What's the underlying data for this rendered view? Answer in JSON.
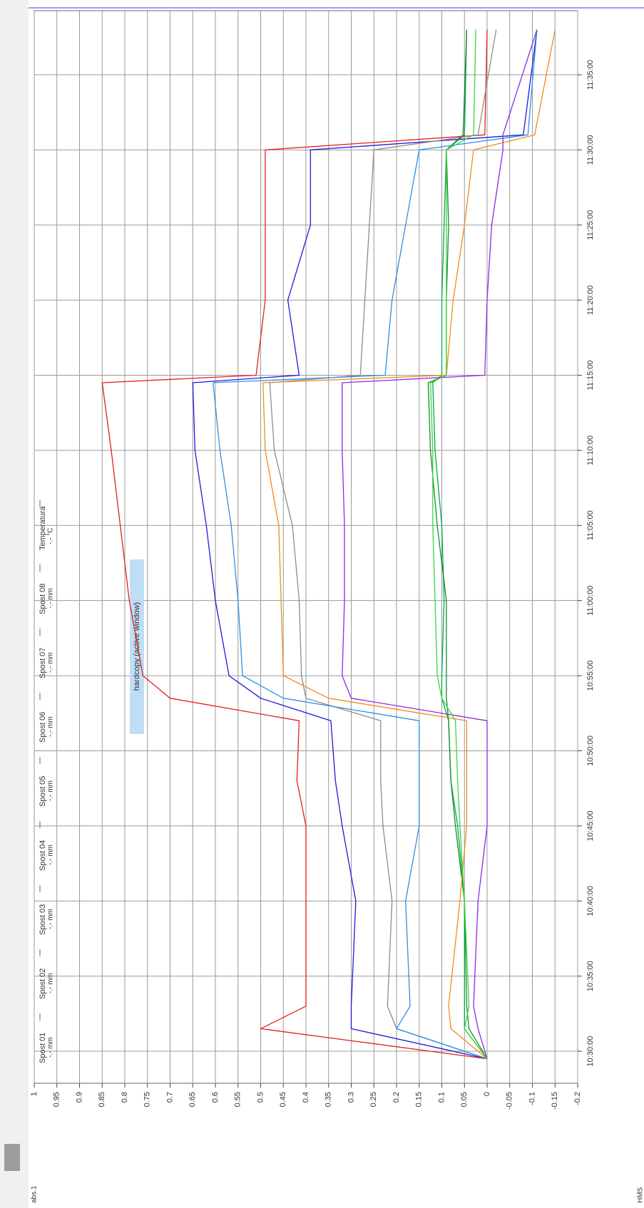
{
  "chart_data": {
    "type": "line",
    "annotation": "hardcopy (active window)",
    "x_axis_label": "HMS",
    "y_axis_label": "abs.1",
    "x": [
      "10:29:30",
      "10:31:30",
      "10:33:00",
      "10:40:00",
      "10:45:00",
      "10:48:00",
      "10:52:00",
      "10:53:30",
      "10:55:00",
      "11:00:00",
      "11:05:00",
      "11:10:00",
      "11:14:30",
      "11:15:00",
      "11:20:00",
      "11:25:00",
      "11:30:00",
      "11:31:00",
      "11:38:00"
    ],
    "xlim": [
      "10:27:52",
      "11:39:16"
    ],
    "xticks": [
      "10:30:00",
      "10:35:00",
      "10:40:00",
      "10:45:00",
      "10:50:00",
      "10:55:00",
      "11:00:00",
      "11:05:00",
      "11:10:00",
      "11:15:00",
      "11:20:00",
      "11:25:00",
      "11:30:00",
      "11:35:00"
    ],
    "ylim": [
      -0.2,
      1
    ],
    "yticks": [
      1,
      0.95,
      0.9,
      0.85,
      0.8,
      0.75,
      0.7,
      0.65,
      0.6,
      0.55,
      0.5,
      0.45,
      0.4,
      0.35,
      0.3,
      0.25,
      0.2,
      0.15,
      0.1,
      0.05,
      0,
      -0.05,
      -0.1,
      -0.15,
      -0.2
    ],
    "grid": true,
    "series": [
      {
        "name": "Spost 01",
        "unit_label": "-.- mm",
        "color": "#00a844",
        "values": [
          0,
          0.05,
          0.05,
          0.05,
          0.065,
          0.08,
          0.085,
          0.1,
          0.1,
          0.095,
          0.1,
          0.115,
          0.12,
          0.1,
          0.1,
          0.095,
          0.09,
          0.05,
          0.045
        ]
      },
      {
        "name": "Spost 02",
        "unit_label": "-.- mm",
        "color": "#1a1adc",
        "values": [
          0,
          0.3,
          0.3,
          0.29,
          0.32,
          0.335,
          0.345,
          0.5,
          0.57,
          0.6,
          0.62,
          0.645,
          0.65,
          0.415,
          0.44,
          0.39,
          0.39,
          -0.08,
          -0.11
        ]
      },
      {
        "name": "Spost 03",
        "unit_label": "-.- mm",
        "color": "#e81c1c",
        "values": [
          0,
          0.5,
          0.4,
          0.4,
          0.4,
          0.42,
          0.415,
          0.7,
          0.76,
          0.79,
          0.81,
          0.83,
          0.85,
          0.51,
          0.49,
          0.49,
          0.49,
          0.005,
          0
        ]
      },
      {
        "name": "Spost 04",
        "unit_label": "-.- mm",
        "color": "#8c8c8c",
        "values": [
          0,
          0.2,
          0.22,
          0.21,
          0.23,
          0.235,
          0.235,
          0.4,
          0.41,
          0.415,
          0.43,
          0.47,
          0.48,
          0.28,
          0.27,
          0.26,
          0.25,
          0.02,
          -0.02
        ]
      },
      {
        "name": "Spost 05",
        "unit_label": "-.- mm",
        "color": "#178a2e",
        "values": [
          0,
          0.04,
          0.045,
          0.05,
          0.07,
          0.08,
          0.085,
          0.09,
          0.09,
          0.09,
          0.11,
          0.125,
          0.13,
          0.09,
          0.09,
          0.085,
          0.09,
          0.053,
          0.045
        ]
      },
      {
        "name": "Spost 06",
        "unit_label": "-.- mm",
        "color": "#2b8fe6",
        "values": [
          0,
          0.2,
          0.17,
          0.18,
          0.15,
          0.15,
          0.15,
          0.45,
          0.54,
          0.55,
          0.565,
          0.59,
          0.605,
          0.225,
          0.21,
          0.18,
          0.15,
          -0.09,
          -0.11
        ]
      },
      {
        "name": "Spost 07",
        "unit_label": "-.- mm",
        "color": "#f28a1c",
        "values": [
          0,
          0.08,
          0.085,
          0.06,
          0.045,
          0.045,
          0.045,
          0.35,
          0.45,
          0.455,
          0.46,
          0.49,
          0.495,
          0.09,
          0.075,
          0.05,
          0.03,
          -0.105,
          -0.15
        ]
      },
      {
        "name": "Spost 08",
        "unit_label": "-.- mm",
        "color": "#8a2be2",
        "values": [
          0,
          0.02,
          0.03,
          0.02,
          0,
          0,
          0,
          0.3,
          0.32,
          0.315,
          0.315,
          0.32,
          0.32,
          0.005,
          0,
          -0.01,
          -0.035,
          -0.035,
          -0.11
        ]
      },
      {
        "name": "Temperatura",
        "unit_label": "-.- °C",
        "color": "#3ad63a",
        "values": [
          0,
          0.05,
          0.04,
          0.05,
          0.06,
          0.065,
          0.07,
          0.1,
          0.11,
          0.115,
          0.12,
          0.12,
          0.125,
          0.09,
          0.09,
          0.09,
          0.09,
          0.03,
          0.025
        ]
      }
    ]
  }
}
